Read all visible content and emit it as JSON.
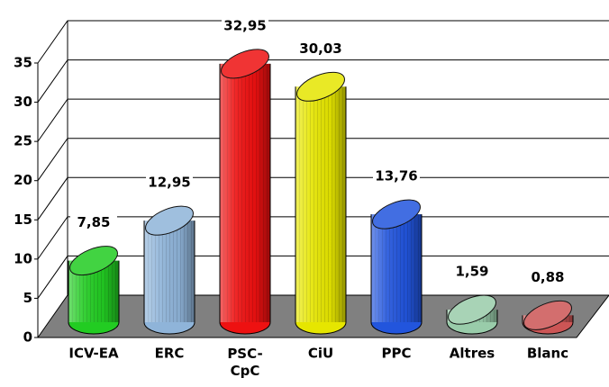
{
  "chart_data": {
    "type": "bar",
    "categories": [
      "ICV-EA",
      "ERC",
      "PSC-CpC",
      "CiU",
      "PPC",
      "Altres",
      "Blanc"
    ],
    "values": [
      7.85,
      12.95,
      32.95,
      30.03,
      13.76,
      1.59,
      0.88
    ],
    "value_labels": [
      "7,85",
      "12,95",
      "32,95",
      "30,03",
      "13,76",
      "1,59",
      "0,88"
    ],
    "colors": [
      "#22cc22",
      "#8fb4d9",
      "#ee1111",
      "#e6e600",
      "#2255dd",
      "#99ccaa",
      "#cc5555"
    ],
    "ylim": [
      0,
      35
    ],
    "yticks": [
      0,
      5,
      10,
      15,
      20,
      25,
      30,
      35
    ],
    "grid": true
  }
}
